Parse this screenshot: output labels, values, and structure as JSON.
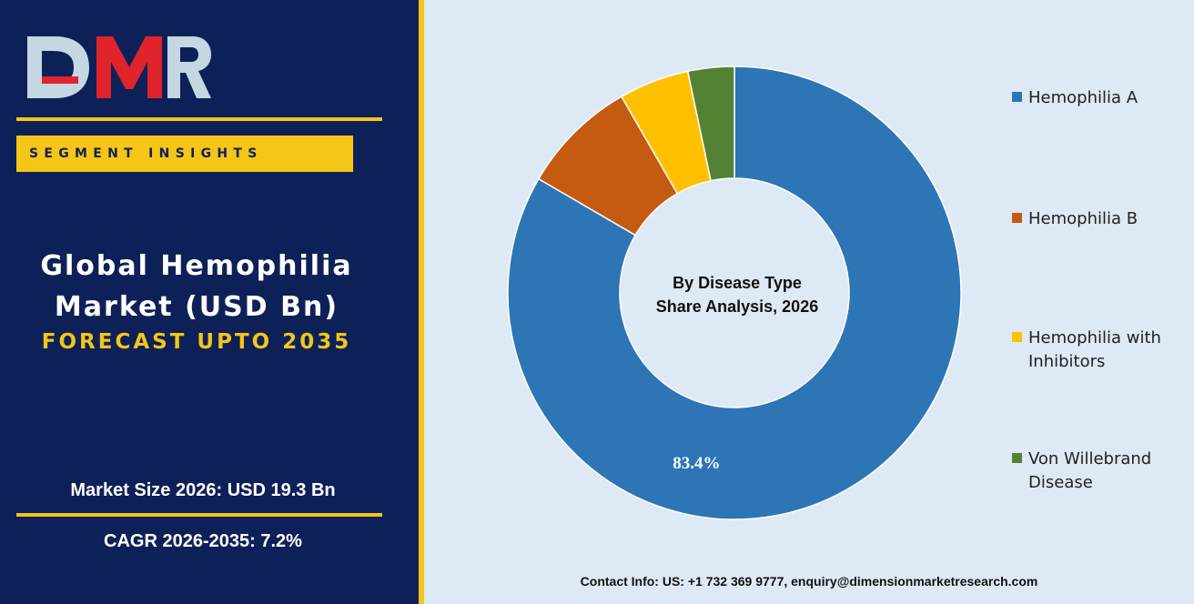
{
  "brand": {
    "logo_text": "DMR"
  },
  "badge": {
    "label": "SEGMENT INSIGHTS"
  },
  "title": {
    "line1": "Global Hemophilia",
    "line2": "Market (USD Bn)",
    "subtitle": "FORECAST UPTO 2035"
  },
  "stats": {
    "market_size": "Market Size 2026: USD 19.3  Bn",
    "cagr": "CAGR 2026-2035: 7.2%"
  },
  "contact": "Contact Info: US: +1 732 369 9777, enquiry@dimensionmarketresearch.com",
  "colors": {
    "panel": "#0d2158",
    "accent": "#f5c518",
    "background": "#dde9f4"
  },
  "chart_data": {
    "type": "pie",
    "variant": "donut",
    "center_label": {
      "line1": "By Disease Type",
      "line2": "Share Analysis, 2026"
    },
    "categories": [
      "Hemophilia A",
      "Hemophilia B",
      "Hemophilia with Inhibitors",
      "Von Willebrand Disease"
    ],
    "values": [
      83.4,
      8.3,
      5.0,
      3.3
    ],
    "colors": [
      "#2e75b6",
      "#c55a11",
      "#ffc000",
      "#548235"
    ],
    "data_labels": [
      "83.4%",
      "",
      "",
      ""
    ],
    "legend": {
      "position": "right",
      "entries": [
        {
          "line1": "Hemophilia A",
          "line2": ""
        },
        {
          "line1": "Hemophilia B",
          "line2": ""
        },
        {
          "line1": "Hemophilia with",
          "line2": "Inhibitors"
        },
        {
          "line1": "Von Willebrand",
          "line2": "Disease"
        }
      ]
    }
  }
}
